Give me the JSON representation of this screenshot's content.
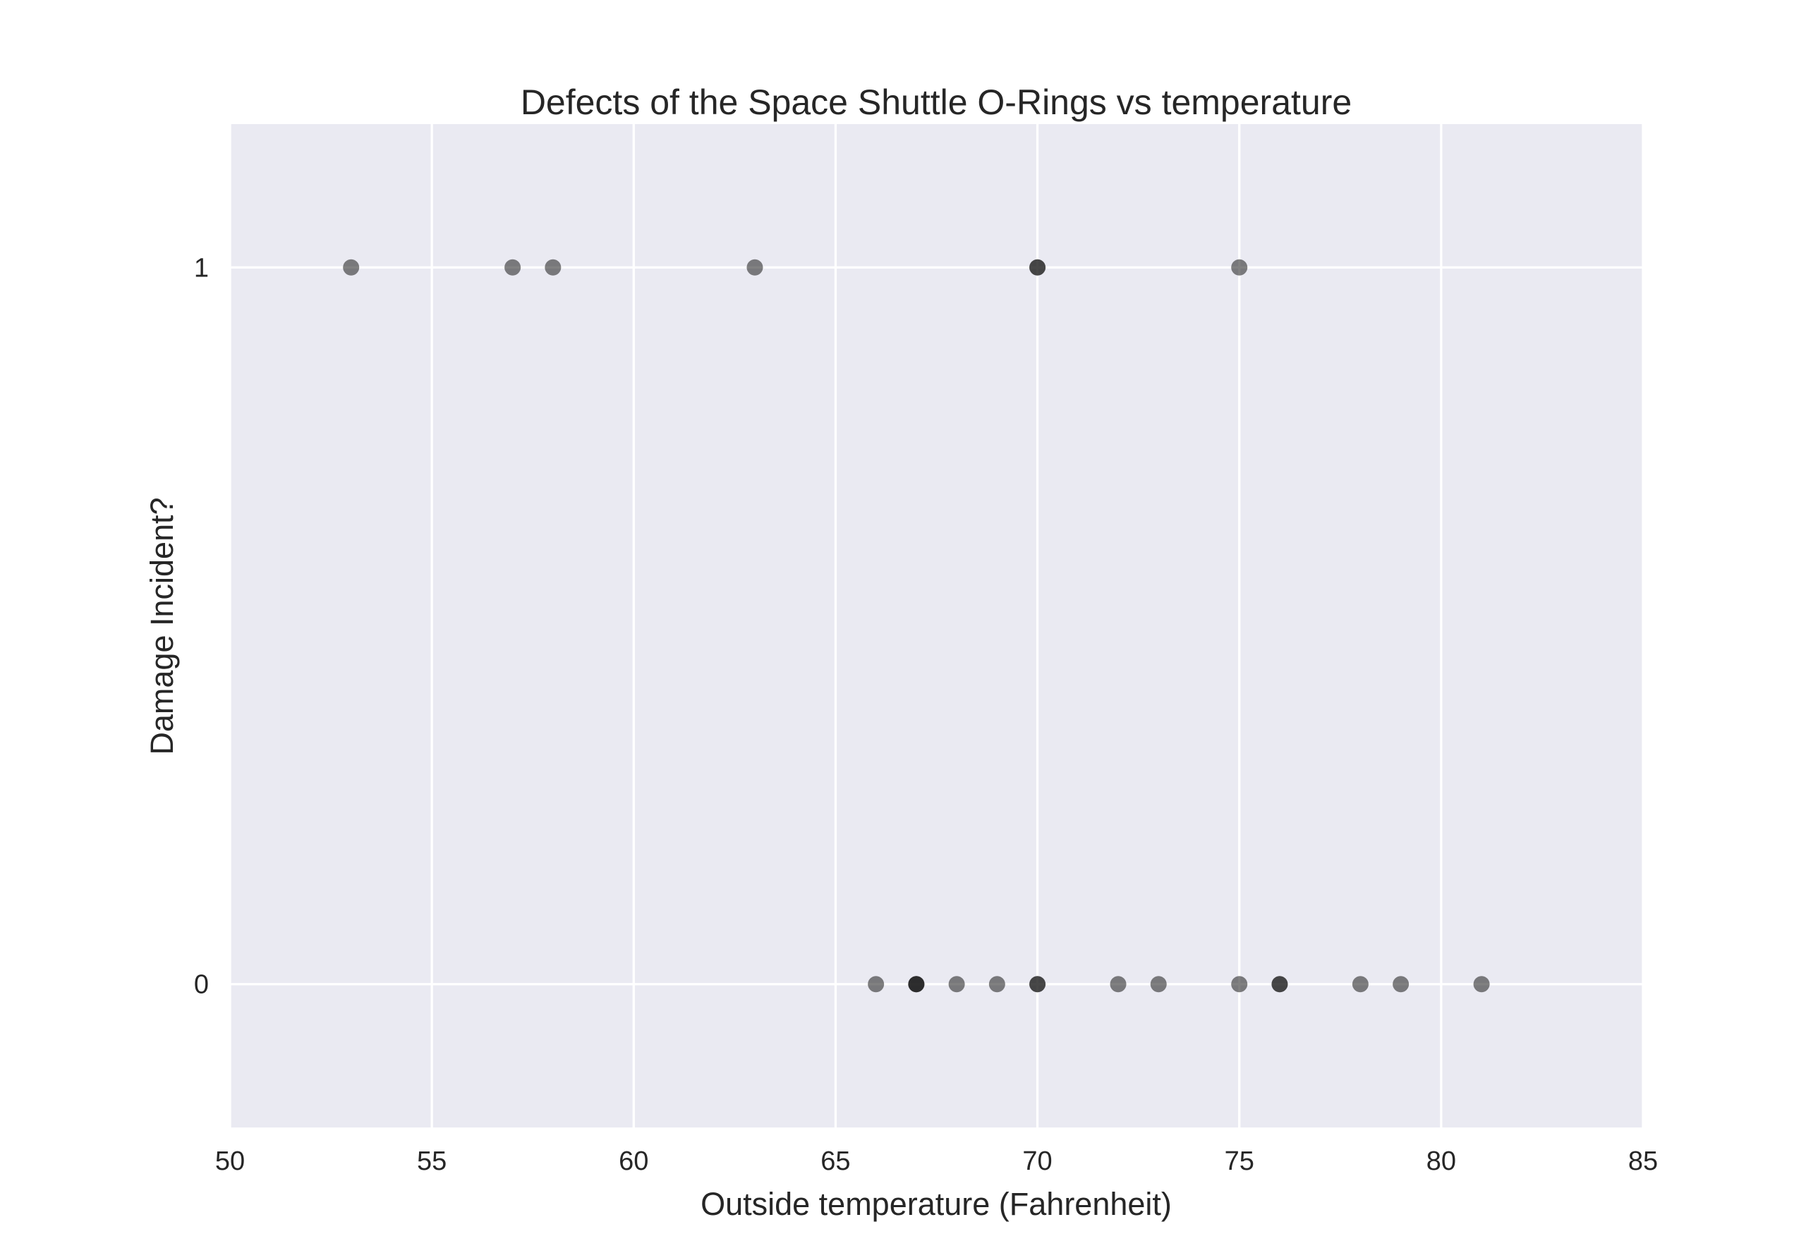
{
  "chart_data": {
    "type": "scatter",
    "title": "Defects of the Space Shuttle O-Rings vs temperature",
    "xlabel": "Outside temperature (Fahrenheit)",
    "ylabel": "Damage Incident?",
    "xlim": [
      50,
      85
    ],
    "ylim": [
      -0.2,
      1.2
    ],
    "xticks": [
      50,
      55,
      60,
      65,
      70,
      75,
      80,
      85
    ],
    "yticks": [
      0,
      1
    ],
    "grid": true,
    "background_color": "#eaeaf2",
    "marker_color": "#1a1a1a",
    "points": [
      {
        "x": 53,
        "y": 1
      },
      {
        "x": 57,
        "y": 1
      },
      {
        "x": 58,
        "y": 1
      },
      {
        "x": 63,
        "y": 1
      },
      {
        "x": 66,
        "y": 0
      },
      {
        "x": 67,
        "y": 0
      },
      {
        "x": 67,
        "y": 0
      },
      {
        "x": 67,
        "y": 0
      },
      {
        "x": 68,
        "y": 0
      },
      {
        "x": 69,
        "y": 0
      },
      {
        "x": 70,
        "y": 0
      },
      {
        "x": 70,
        "y": 0
      },
      {
        "x": 70,
        "y": 1
      },
      {
        "x": 70,
        "y": 1
      },
      {
        "x": 72,
        "y": 0
      },
      {
        "x": 73,
        "y": 0
      },
      {
        "x": 75,
        "y": 0
      },
      {
        "x": 75,
        "y": 1
      },
      {
        "x": 76,
        "y": 0
      },
      {
        "x": 76,
        "y": 0
      },
      {
        "x": 78,
        "y": 0
      },
      {
        "x": 79,
        "y": 0
      },
      {
        "x": 81,
        "y": 0
      }
    ]
  }
}
